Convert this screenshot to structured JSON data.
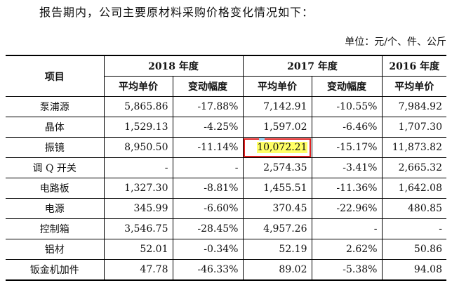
{
  "intro": "报告期内，公司主要原材料采购价格变化情况如下：",
  "unit": "单位：元/个、件、公斤",
  "headers": {
    "item": "项目",
    "y2018": "2018 年度",
    "y2017": "2017 年度",
    "y2016": "2016 年度",
    "avg_price": "平均单价",
    "change": "变动幅度"
  },
  "rows": [
    {
      "name": "泵浦源",
      "p2018": "5,865.86",
      "c2018": "-17.88%",
      "p2017": "7,142.91",
      "c2017": "-10.55%",
      "p2016": "7,984.92"
    },
    {
      "name": "晶体",
      "p2018": "1,529.13",
      "c2018": "-4.25%",
      "p2017": "1,597.02",
      "c2017": "-6.46%",
      "p2016": "1,707.30"
    },
    {
      "name": "振镜",
      "p2018": "8,950.50",
      "c2018": "-11.14%",
      "p2017": "10,072.21",
      "c2017": "-15.17%",
      "p2016": "11,873.82"
    },
    {
      "name": "调 Q 开关",
      "p2018": "-",
      "c2018": "-",
      "p2017": "2,574.35",
      "c2017": "-3.41%",
      "p2016": "2,665.32"
    },
    {
      "name": "电路板",
      "p2018": "1,327.30",
      "c2018": "-8.81%",
      "p2017": "1,455.51",
      "c2017": "-11.36%",
      "p2016": "1,642.08"
    },
    {
      "name": "电源",
      "p2018": "345.99",
      "c2018": "-6.60%",
      "p2017": "370.45",
      "c2017": "-22.96%",
      "p2016": "480.85"
    },
    {
      "name": "控制箱",
      "p2018": "3,546.75",
      "c2018": "-28.45%",
      "p2017": "4,957.26",
      "c2017": "-",
      "p2016": "-"
    },
    {
      "name": "铝材",
      "p2018": "52.01",
      "c2018": "-0.34%",
      "p2017": "52.19",
      "c2017": "2.62%",
      "p2016": "50.86"
    },
    {
      "name": "钣金机加件",
      "p2018": "47.78",
      "c2018": "-46.33%",
      "p2017": "89.02",
      "c2017": "-5.38%",
      "p2016": "94.08"
    }
  ],
  "highlight_color": "#ffff66",
  "flag_color": "#e02020"
}
